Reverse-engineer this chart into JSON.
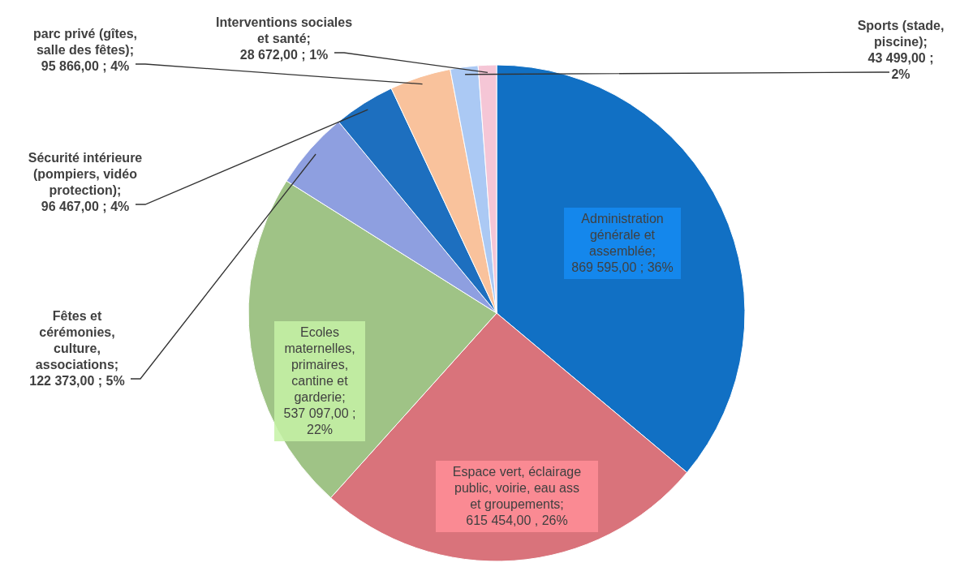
{
  "chart_data": {
    "type": "pie",
    "categories": [
      "Administration générale et assemblée",
      "Espace vert, éclairage public, voirie, eau ass et groupements",
      "Ecoles maternelles, primaires, cantine et garderie",
      "Fêtes et cérémonies, culture, associations",
      "Sécurité intérieure (pompiers, vidéo protection)",
      "parc privé (gîtes, salle des fêtes)",
      "Sports (stade, piscine)",
      "Interventions sociales et santé"
    ],
    "values": [
      869595,
      615454,
      537097,
      122373,
      96467,
      95866,
      43499,
      28672
    ],
    "value_labels": [
      "; 869 595,00 ; 36%",
      "; 615 454,00 , 26%",
      "; 537 097,00 ; 22%",
      "; 122 373,00 ; 5%",
      "; 96 467,00 ; 4%",
      "; 95 866,00 ; 4%",
      "; 43 499,00 ; 2%",
      "; 28 672,00 ; 1%"
    ],
    "colors": [
      "#1170c4",
      "#d9737b",
      "#9fc386",
      "#8e9fe0",
      "#1d6fbf",
      "#f9c29c",
      "#abc9f4",
      "#f5c6d6"
    ]
  }
}
